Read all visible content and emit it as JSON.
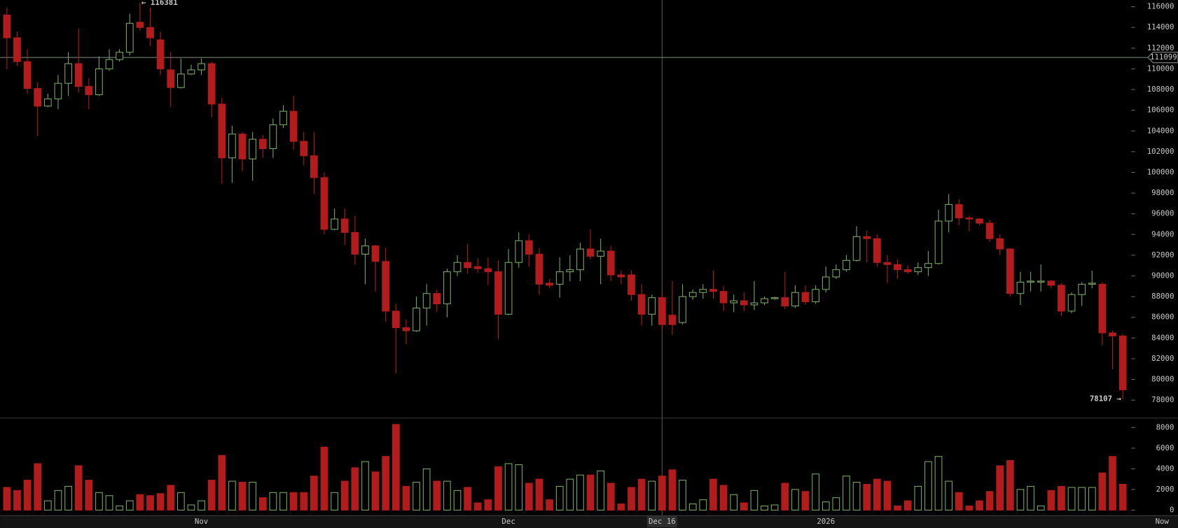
{
  "chart_data": {
    "type": "candlestick",
    "categories": [
      null,
      null,
      null,
      null,
      null,
      null,
      null,
      null,
      null,
      null,
      null,
      null,
      null,
      null,
      null,
      null,
      null,
      null,
      null,
      "Nov",
      null,
      null,
      null,
      null,
      null,
      null,
      null,
      null,
      null,
      null,
      null,
      null,
      null,
      null,
      null,
      null,
      null,
      null,
      null,
      null,
      null,
      null,
      null,
      null,
      null,
      null,
      null,
      null,
      null,
      "Dec",
      null,
      null,
      null,
      null,
      null,
      null,
      null,
      null,
      null,
      null,
      null,
      null,
      null,
      null,
      "Dec 16",
      null,
      null,
      null,
      null,
      null,
      null,
      null,
      null,
      null,
      null,
      null,
      null,
      null,
      null,
      null,
      "2026",
      null,
      null,
      null,
      null,
      null,
      null,
      null,
      null,
      null,
      null,
      null,
      null,
      null,
      null,
      null,
      null,
      null,
      null,
      null,
      null,
      null,
      null,
      null,
      null,
      null,
      null,
      null,
      null,
      null
    ],
    "x_end_label": "Now",
    "open": [
      115200,
      113000,
      110700,
      108100,
      106400,
      107100,
      108600,
      110500,
      108300,
      107500,
      110000,
      110900,
      111600,
      114500,
      114000,
      112800,
      109900,
      108200,
      109500,
      109900,
      110500,
      106600,
      101400,
      103700,
      101300,
      103200,
      102300,
      104600,
      105900,
      103000,
      101600,
      99500,
      94500,
      95500,
      94200,
      92100,
      92900,
      91400,
      86600,
      85000,
      84700,
      86900,
      88300,
      87300,
      90400,
      91300,
      90900,
      90700,
      90400,
      86300,
      91300,
      93400,
      92100,
      89300,
      89200,
      90400,
      90600,
      92600,
      91900,
      92400,
      90100,
      90100,
      88200,
      86300,
      87900,
      86200,
      85500,
      88000,
      88400,
      88700,
      88500,
      87400,
      87600,
      87200,
      87400,
      87800,
      87900,
      87100,
      88400,
      87500,
      88700,
      89900,
      90600,
      91500,
      93800,
      93600,
      91300,
      91100,
      90600,
      90400,
      90800,
      91200,
      95300,
      96900,
      95600,
      95500,
      95100,
      93600,
      92600,
      88300,
      89400,
      89400,
      89500,
      89100,
      86600,
      88200,
      89200,
      89200,
      84500,
      84200
    ],
    "high": [
      115930,
      113600,
      111900,
      108700,
      107600,
      109400,
      111600,
      113900,
      109100,
      111200,
      111900,
      111900,
      115300,
      116381,
      115900,
      113600,
      111600,
      111000,
      110400,
      111000,
      110700,
      107200,
      104500,
      103900,
      103900,
      103600,
      105200,
      106500,
      107400,
      103900,
      103900,
      100000,
      96500,
      96500,
      95800,
      93600,
      93000,
      92700,
      87300,
      85800,
      88000,
      89200,
      88700,
      90700,
      92000,
      93100,
      91700,
      91800,
      91500,
      92600,
      94200,
      94000,
      92700,
      89700,
      91800,
      92000,
      93200,
      94500,
      93600,
      92900,
      90500,
      90500,
      89200,
      88200,
      88500,
      89500,
      89200,
      88700,
      89200,
      90500,
      89000,
      88200,
      88400,
      89500,
      88000,
      88000,
      90400,
      89100,
      89100,
      89100,
      90900,
      91100,
      92000,
      94800,
      94400,
      94000,
      92000,
      91600,
      91000,
      91300,
      92400,
      96400,
      97900,
      97400,
      95800,
      95600,
      95400,
      94000,
      92700,
      90400,
      90400,
      91100,
      89600,
      89300,
      88400,
      89400,
      90500,
      89400,
      84700,
      84400
    ],
    "low": [
      109980,
      110300,
      107600,
      103500,
      106300,
      106100,
      107400,
      107700,
      106100,
      107400,
      109800,
      110700,
      111300,
      113700,
      112200,
      109400,
      106300,
      108100,
      109400,
      109400,
      105300,
      98900,
      99000,
      100100,
      99200,
      101400,
      101400,
      104300,
      102200,
      100700,
      97900,
      94000,
      94400,
      93000,
      91100,
      89200,
      88500,
      85600,
      80600,
      83400,
      84600,
      85200,
      86500,
      86000,
      90000,
      90200,
      90300,
      89100,
      83900,
      86200,
      90800,
      90900,
      88200,
      88800,
      87900,
      89500,
      89500,
      91600,
      89200,
      89500,
      89200,
      87600,
      85200,
      85200,
      84800,
      84300,
      85300,
      87700,
      87800,
      87800,
      86600,
      86500,
      86600,
      86700,
      87200,
      87700,
      86800,
      86900,
      87200,
      87300,
      88400,
      89700,
      90400,
      91400,
      91300,
      90900,
      89300,
      89700,
      90200,
      90100,
      90000,
      91100,
      94200,
      94900,
      94300,
      94900,
      93300,
      92000,
      88000,
      87200,
      88500,
      88500,
      88800,
      86100,
      86400,
      87100,
      88800,
      83300,
      81000,
      78107
    ],
    "close": [
      113000,
      110700,
      108100,
      106400,
      107100,
      108600,
      110500,
      108300,
      107500,
      110000,
      110900,
      111600,
      114400,
      114000,
      113000,
      110000,
      108200,
      109500,
      109900,
      110500,
      106600,
      101400,
      103700,
      101300,
      103200,
      102300,
      104600,
      105900,
      103000,
      101600,
      99500,
      94500,
      95500,
      94200,
      92100,
      92900,
      91400,
      86600,
      85000,
      84700,
      86900,
      88300,
      87300,
      90400,
      91300,
      90800,
      90700,
      90400,
      86300,
      91300,
      93400,
      92100,
      89200,
      89100,
      90400,
      90600,
      92600,
      91900,
      92400,
      90100,
      89900,
      88200,
      86300,
      87900,
      85300,
      85300,
      88000,
      88400,
      88700,
      88500,
      87400,
      87600,
      87200,
      87400,
      87800,
      87900,
      87100,
      88400,
      87500,
      88700,
      89900,
      90600,
      91500,
      93800,
      93600,
      91300,
      91100,
      90600,
      90400,
      90800,
      91200,
      95300,
      96900,
      95600,
      95500,
      95100,
      93600,
      92600,
      88300,
      89400,
      89500,
      89500,
      89100,
      86600,
      88200,
      89200,
      89300,
      84500,
      84200,
      79000
    ],
    "volume": [
      2200,
      1900,
      2900,
      4500,
      900,
      1900,
      2300,
      4300,
      2900,
      1700,
      1400,
      400,
      900,
      1500,
      1400,
      1600,
      2400,
      1700,
      500,
      900,
      2900,
      5300,
      2800,
      2700,
      2700,
      1200,
      1700,
      1700,
      1700,
      1700,
      3300,
      6100,
      1700,
      2800,
      4100,
      4700,
      3700,
      5200,
      8300,
      2300,
      2700,
      4000,
      2800,
      2800,
      1900,
      2200,
      700,
      1000,
      4200,
      4500,
      4400,
      2600,
      3000,
      1000,
      2300,
      3000,
      3400,
      3400,
      3800,
      2600,
      600,
      2200,
      3000,
      2800,
      3300,
      3900,
      2900,
      600,
      1000,
      3000,
      2400,
      1500,
      700,
      1900,
      400,
      500,
      2600,
      2000,
      1800,
      3500,
      800,
      1200,
      3300,
      2700,
      2500,
      3000,
      2800,
      400,
      900,
      2300,
      4700,
      5200,
      2800,
      1700,
      400,
      900,
      1800,
      4300,
      4800,
      2000,
      2300,
      400,
      1900,
      2300,
      2200,
      2200,
      2200,
      3600,
      5200,
      2500
    ],
    "up_color": "#78a860",
    "down_color": "#b31c1c",
    "ylim": [
      76300,
      116650
    ],
    "yticks": [
      78000,
      80000,
      82000,
      84000,
      86000,
      88000,
      90000,
      92000,
      94000,
      96000,
      98000,
      100000,
      102000,
      104000,
      106000,
      108000,
      110000,
      112000,
      114000,
      116000
    ],
    "volume_ylim": [
      -500,
      8950
    ],
    "volume_yticks": [
      0,
      2000,
      4000,
      6000,
      8000
    ],
    "high_label": {
      "value": 116381,
      "label": "← 116381"
    },
    "low_label": {
      "value": 78107,
      "label": "78107 →"
    },
    "crosshair": {
      "price": 111099,
      "x": "Dec 16"
    }
  }
}
